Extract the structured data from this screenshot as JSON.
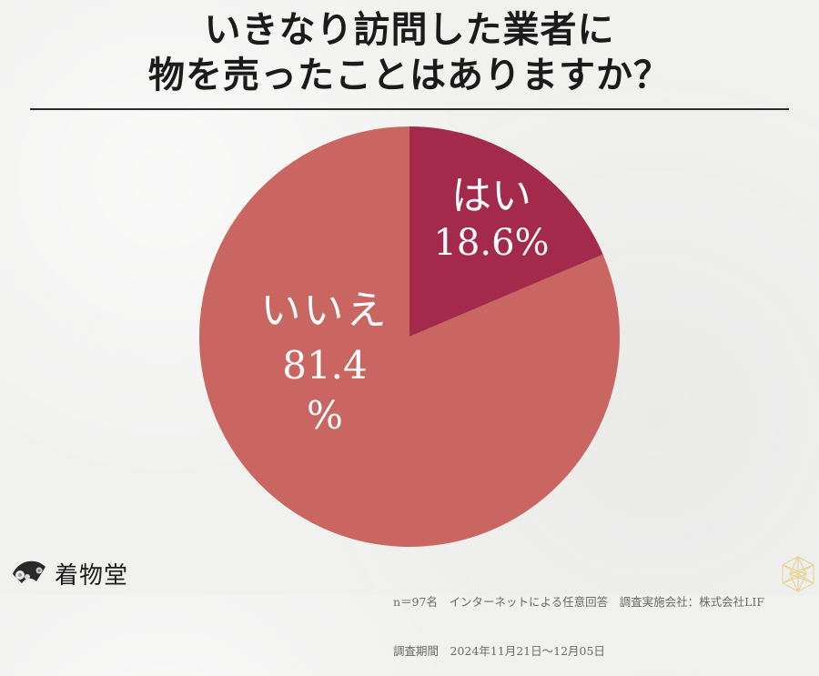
{
  "title": {
    "line1": "いきなり訪問した業者に",
    "line2": "物を売ったことはありますか？"
  },
  "chart_data": {
    "type": "pie",
    "title": "いきなり訪問した業者に物を売ったことはありますか？",
    "categories": [
      "はい",
      "いいえ"
    ],
    "values": [
      18.6,
      81.4
    ],
    "unit": "%",
    "colors": [
      "#a42a4c",
      "#c96661"
    ],
    "start_angle": "12 o'clock, clockwise",
    "labels": [
      {
        "name": "はい",
        "value_text": "18.6%"
      },
      {
        "name": "いいえ",
        "value_text": "81.4",
        "value_suffix": "%"
      }
    ]
  },
  "footnote": {
    "line1": "n＝97名　インターネットによる任意回答　調査実施会社：株式会社LIF",
    "line2": "調査期間　2024年11月21日～12月05日"
  },
  "brand": {
    "name": "着物堂",
    "icon": "folding-fan-icon"
  },
  "colors": {
    "background": "#f1f1f0",
    "title_text": "#1b1b1b",
    "yes_slice": "#a42a4c",
    "no_slice": "#c96661",
    "pattern_gold": "#e6cf7a"
  }
}
